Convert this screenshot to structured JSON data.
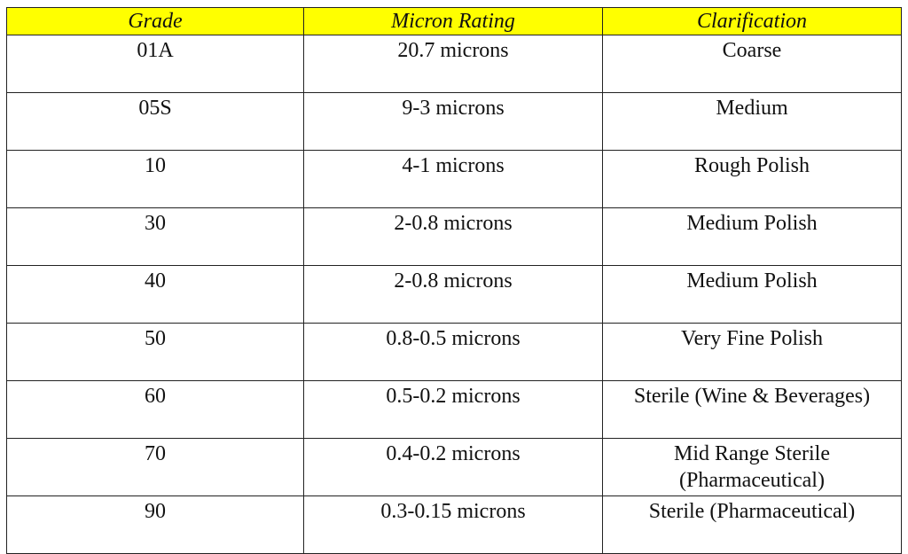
{
  "table": {
    "header": [
      "Grade",
      "Micron Rating",
      "Clarification"
    ],
    "rows": [
      [
        "01A",
        "20.7 microns",
        "Coarse"
      ],
      [
        "05S",
        "9-3 microns",
        "Medium"
      ],
      [
        "10",
        "4-1 microns",
        "Rough Polish"
      ],
      [
        "30",
        "2-0.8 microns",
        "Medium Polish"
      ],
      [
        "40",
        "2-0.8 microns",
        "Medium Polish"
      ],
      [
        "50",
        "0.8-0.5 microns",
        "Very Fine Polish"
      ],
      [
        "60",
        "0.5-0.2 microns",
        "Sterile (Wine & Beverages)"
      ],
      [
        "70",
        "0.4-0.2 microns",
        "Mid Range Sterile (Pharmaceutical)"
      ],
      [
        "90",
        "0.3-0.15 microns",
        "Sterile (Pharmaceutical)"
      ]
    ]
  }
}
